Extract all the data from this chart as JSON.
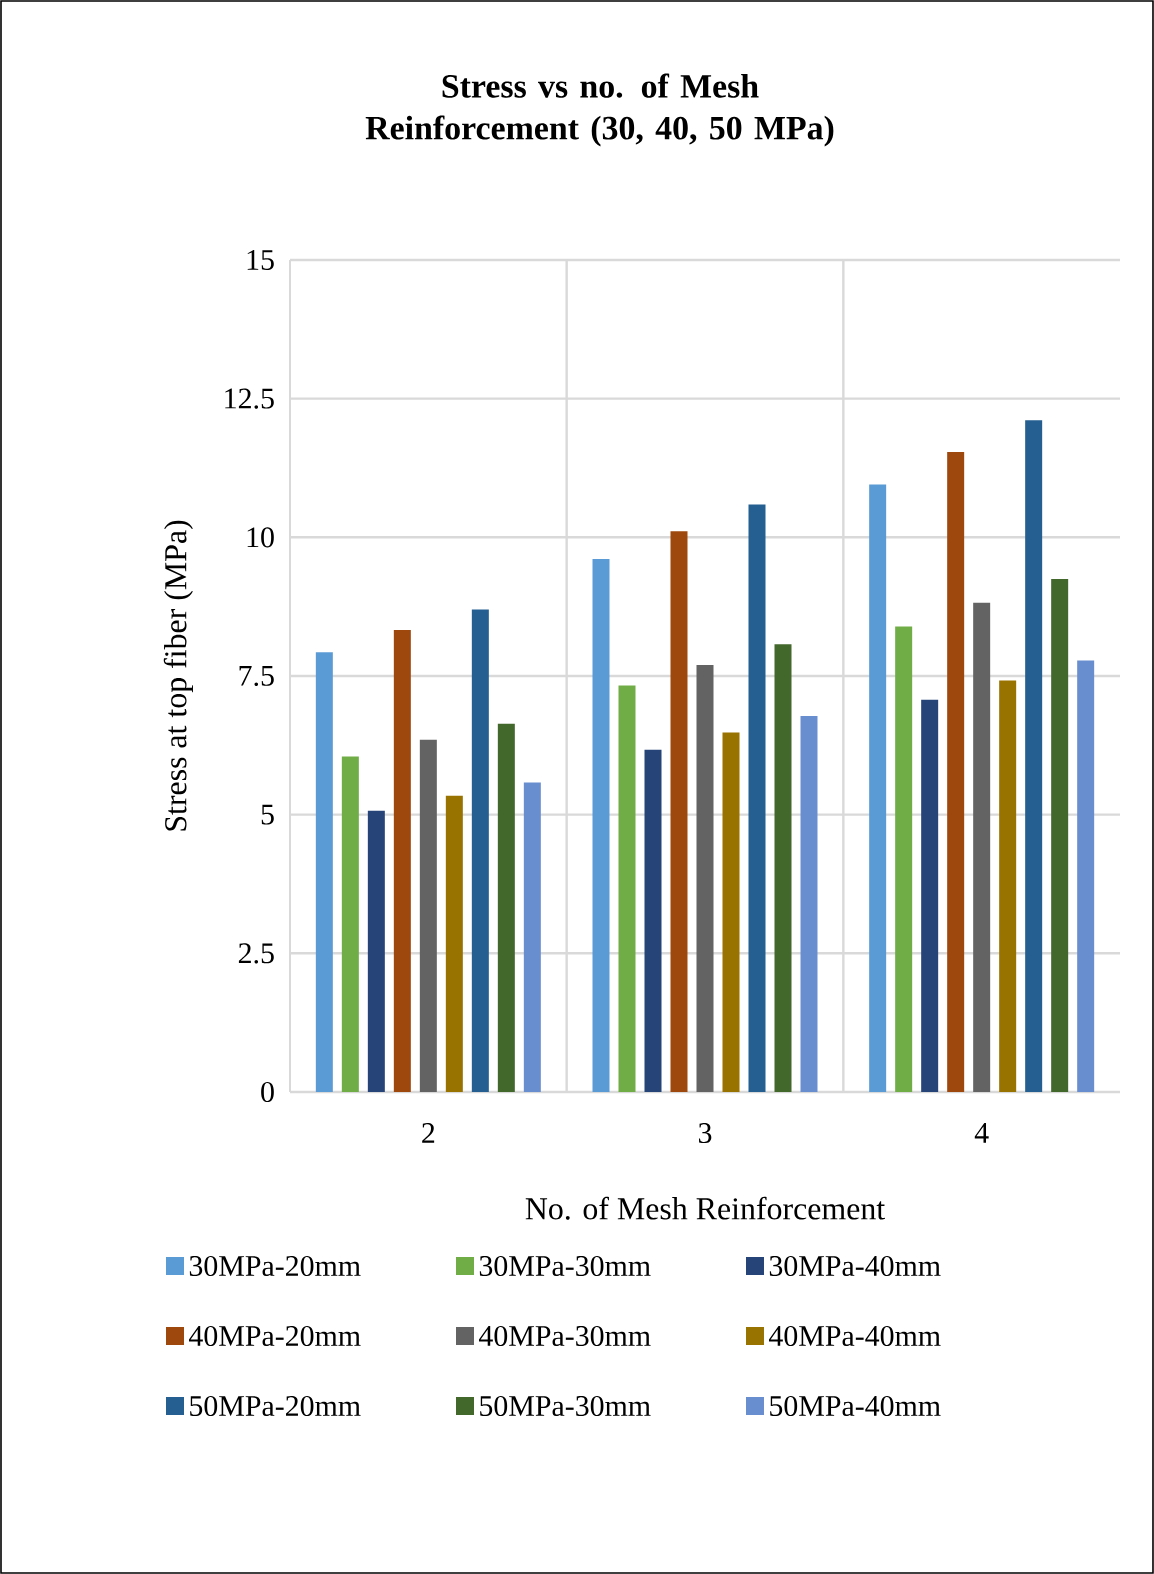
{
  "chart_data": {
    "type": "bar",
    "title": "Stress vs no. of Mesh Reinforcement (30, 40, 50 MPa)",
    "xlabel": "No. of Mesh Reinforcement",
    "ylabel": "Stress at top fiber (MPa)",
    "categories": [
      "2",
      "3",
      "4"
    ],
    "ylim": [
      0,
      15
    ],
    "yticks": [
      0,
      2.5,
      5,
      7.5,
      10,
      12.5,
      15
    ],
    "grid": true,
    "legend": "bottom",
    "series": [
      {
        "name": "30MPa-20mm",
        "color": "#5b9bd5",
        "values": [
          7.93,
          9.61,
          10.95
        ]
      },
      {
        "name": "30MPa-30mm",
        "color": "#70ad47",
        "values": [
          6.05,
          7.33,
          8.39
        ]
      },
      {
        "name": "30MPa-40mm",
        "color": "#264478",
        "values": [
          5.07,
          6.17,
          7.07
        ]
      },
      {
        "name": "40MPa-20mm",
        "color": "#9e480e",
        "values": [
          8.33,
          10.11,
          11.54
        ]
      },
      {
        "name": "40MPa-30mm",
        "color": "#636363",
        "values": [
          6.35,
          7.7,
          8.82
        ]
      },
      {
        "name": "40MPa-40mm",
        "color": "#997300",
        "values": [
          5.34,
          6.48,
          7.42
        ]
      },
      {
        "name": "50MPa-20mm",
        "color": "#255e91",
        "values": [
          8.7,
          10.59,
          12.11
        ]
      },
      {
        "name": "50MPa-30mm",
        "color": "#43682b",
        "values": [
          6.64,
          8.07,
          9.25
        ]
      },
      {
        "name": "50MPa-40mm",
        "color": "#698ed0",
        "values": [
          5.58,
          6.78,
          7.78
        ]
      }
    ]
  }
}
